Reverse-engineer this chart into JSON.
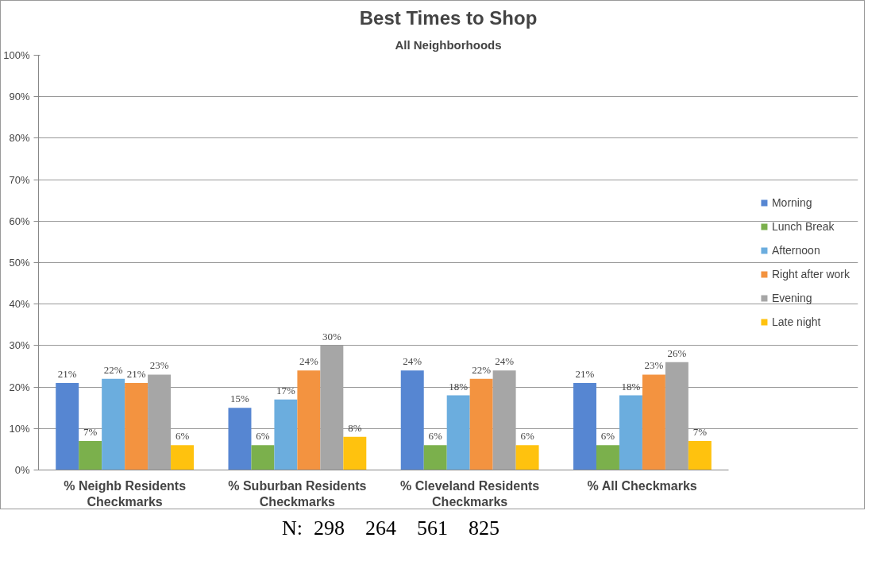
{
  "chart_data": {
    "type": "bar",
    "title": "Best Times to Shop",
    "subtitle": "All Neighborhoods",
    "categories": [
      "% Neighb Residents\nCheckmarks",
      "% Suburban Residents\nCheckmarks",
      "% Cleveland Residents\nCheckmarks",
      "% All Checkmarks"
    ],
    "series": [
      {
        "name": "Morning",
        "color": "#5686d2",
        "values": [
          21,
          15,
          24,
          21
        ],
        "value_labels": [
          "21%",
          "15%",
          "24%",
          "21%"
        ]
      },
      {
        "name": "Lunch Break",
        "color": "#7bb04c",
        "values": [
          7,
          6,
          6,
          6
        ],
        "value_labels": [
          "7%",
          "6%",
          "6%",
          "6%"
        ]
      },
      {
        "name": "Afternoon",
        "color": "#6badde",
        "values": [
          22,
          17,
          18,
          18
        ],
        "value_labels": [
          "22%",
          "17%",
          "18%",
          "18%"
        ]
      },
      {
        "name": "Right after work",
        "color": "#f39340",
        "values": [
          21,
          24,
          22,
          23
        ],
        "value_labels": [
          "21%",
          "24%",
          "22%",
          "23%"
        ]
      },
      {
        "name": "Evening",
        "color": "#a6a6a6",
        "values": [
          23,
          30,
          24,
          26
        ],
        "value_labels": [
          "23%",
          "30%",
          "24%",
          "26%"
        ]
      },
      {
        "name": "Late night",
        "color": "#ffc20e",
        "values": [
          6,
          8,
          6,
          7
        ],
        "value_labels": [
          "6%",
          "8%",
          "6%",
          "7%"
        ]
      }
    ],
    "ylim": [
      0,
      100
    ],
    "yticks": [
      {
        "value": 0,
        "label": "0%"
      },
      {
        "value": 10,
        "label": "10%"
      },
      {
        "value": 20,
        "label": "20%"
      },
      {
        "value": 30,
        "label": "30%"
      },
      {
        "value": 40,
        "label": "40%"
      },
      {
        "value": 50,
        "label": "50%"
      },
      {
        "value": 60,
        "label": "60%"
      },
      {
        "value": 70,
        "label": "70%"
      },
      {
        "value": 80,
        "label": "80%"
      },
      {
        "value": 90,
        "label": "90%"
      },
      {
        "value": 100,
        "label": "100%"
      }
    ],
    "grid": "y",
    "legend": "right",
    "annotations": [
      "N:",
      "298",
      "264",
      "561",
      "825"
    ]
  }
}
